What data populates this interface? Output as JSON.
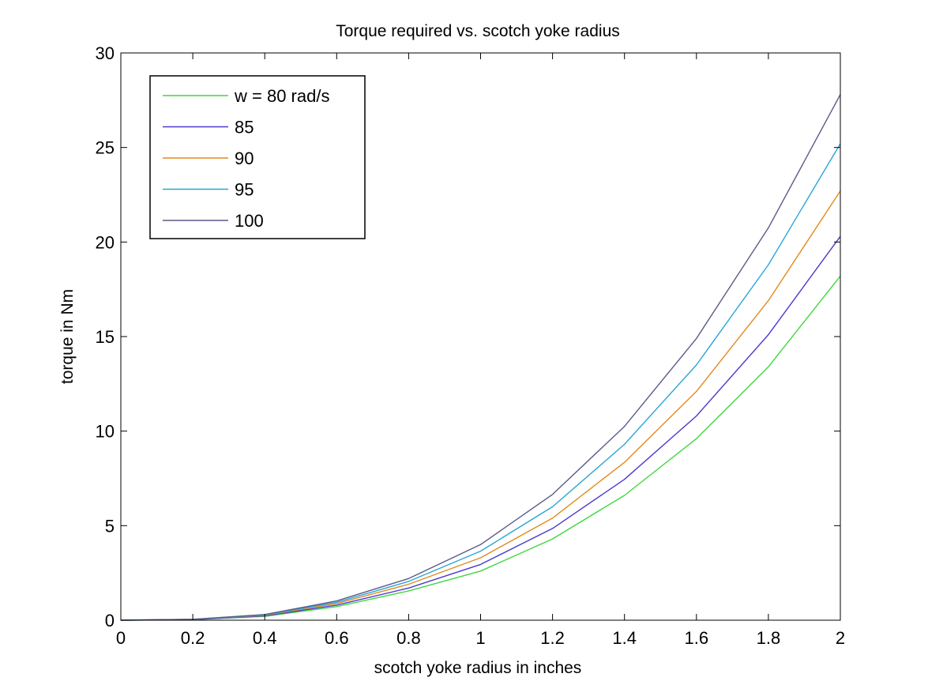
{
  "chart_data": {
    "type": "line",
    "title": "Torque required vs. scotch yoke radius",
    "xlabel": "scotch yoke radius in inches",
    "ylabel": "torque in Nm",
    "xlim": [
      0,
      2
    ],
    "ylim": [
      0,
      30
    ],
    "xticks": [
      0,
      0.2,
      0.4,
      0.6,
      0.8,
      1,
      1.2,
      1.4,
      1.6,
      1.8,
      2
    ],
    "xtick_labels": [
      "0",
      "0.2",
      "0.4",
      "0.6",
      "0.8",
      "1",
      "1.2",
      "1.4",
      "1.6",
      "1.8",
      "2"
    ],
    "yticks": [
      0,
      5,
      10,
      15,
      20,
      25,
      30
    ],
    "ytick_labels": [
      "0",
      "5",
      "10",
      "15",
      "20",
      "25",
      "30"
    ],
    "grid": false,
    "legend_position": "top-left",
    "x": [
      0,
      0.2,
      0.4,
      0.6,
      0.8,
      1.0,
      1.2,
      1.4,
      1.6,
      1.8,
      2.0
    ],
    "series": [
      {
        "name": "w = 80 rad/s",
        "color": "#3fd83f",
        "values": [
          0,
          0.03,
          0.2,
          0.72,
          1.55,
          2.6,
          4.3,
          6.6,
          9.6,
          13.4,
          18.2
        ]
      },
      {
        "name": "85",
        "color": "#4a3ad0",
        "values": [
          0,
          0.03,
          0.23,
          0.8,
          1.7,
          2.95,
          4.85,
          7.45,
          10.8,
          15.1,
          20.3
        ]
      },
      {
        "name": "90",
        "color": "#e38a1f",
        "values": [
          0,
          0.04,
          0.26,
          0.88,
          1.9,
          3.3,
          5.4,
          8.35,
          12.1,
          16.9,
          22.7
        ]
      },
      {
        "name": "95",
        "color": "#2aa6d8",
        "values": [
          0,
          0.04,
          0.28,
          0.95,
          2.05,
          3.65,
          6.0,
          9.3,
          13.5,
          18.8,
          25.2
        ]
      },
      {
        "name": "100",
        "color": "#5a5a8a",
        "values": [
          0,
          0.05,
          0.3,
          1.02,
          2.2,
          4.0,
          6.65,
          10.25,
          14.9,
          20.75,
          27.8
        ]
      }
    ]
  }
}
